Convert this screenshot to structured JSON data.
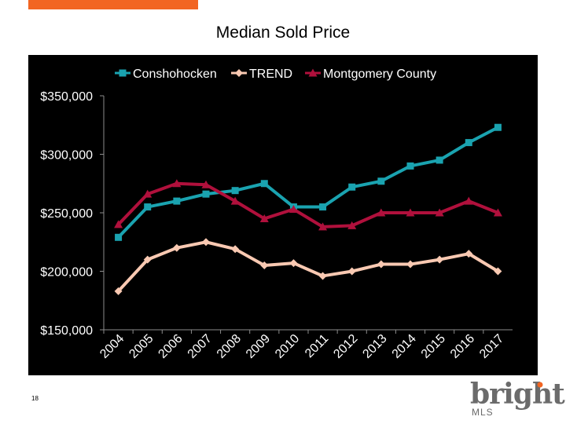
{
  "slide": {
    "title": "Median Sold Price",
    "page_number": "18",
    "logo_text": "bright",
    "logo_sub": "MLS",
    "accent_color": "#f26522"
  },
  "chart_data": {
    "type": "line",
    "title": "",
    "xlabel": "",
    "ylabel": "",
    "categories": [
      "2004",
      "2005",
      "2006",
      "2007",
      "2008",
      "2009",
      "2010",
      "2011",
      "2012",
      "2013",
      "2014",
      "2015",
      "2016",
      "2017"
    ],
    "ylim": [
      150000,
      350000
    ],
    "yticks": [
      150000,
      200000,
      250000,
      300000,
      350000
    ],
    "ytick_labels": [
      "$150,000",
      "$200,000",
      "$250,000",
      "$300,000",
      "$350,000"
    ],
    "legend_position": "top",
    "grid": false,
    "series": [
      {
        "name": "Conshohocken",
        "color": "#1aa3b0",
        "marker": "square",
        "values": [
          229000,
          255000,
          260000,
          266000,
          269000,
          275000,
          255000,
          255000,
          272000,
          277000,
          290000,
          295000,
          310000,
          323000
        ]
      },
      {
        "name": "TREND",
        "color": "#f9c9b2",
        "marker": "diamond",
        "values": [
          183000,
          210000,
          220000,
          225000,
          219000,
          205000,
          207000,
          196000,
          200000,
          206000,
          206000,
          210000,
          215000,
          200000
        ]
      },
      {
        "name": "Montgomery County",
        "color": "#b0103c",
        "marker": "triangle",
        "values": [
          240000,
          266000,
          275000,
          274000,
          260000,
          245000,
          253000,
          238000,
          239000,
          250000,
          250000,
          250000,
          260000,
          250000
        ]
      }
    ]
  }
}
